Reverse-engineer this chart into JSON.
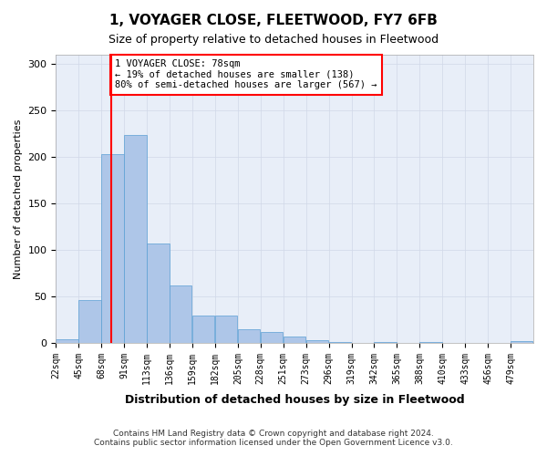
{
  "title": "1, VOYAGER CLOSE, FLEETWOOD, FY7 6FB",
  "subtitle": "Size of property relative to detached houses in Fleetwood",
  "xlabel": "Distribution of detached houses by size in Fleetwood",
  "ylabel": "Number of detached properties",
  "footer_line1": "Contains HM Land Registry data © Crown copyright and database right 2024.",
  "footer_line2": "Contains public sector information licensed under the Open Government Licence v3.0.",
  "bin_labels": [
    "22sqm",
    "45sqm",
    "68sqm",
    "91sqm",
    "113sqm",
    "136sqm",
    "159sqm",
    "182sqm",
    "205sqm",
    "228sqm",
    "251sqm",
    "273sqm",
    "296sqm",
    "319sqm",
    "342sqm",
    "365sqm",
    "388sqm",
    "410sqm",
    "433sqm",
    "456sqm",
    "479sqm"
  ],
  "bar_values": [
    4,
    46,
    203,
    224,
    107,
    62,
    29,
    29,
    15,
    12,
    7,
    3,
    1,
    0,
    1,
    0,
    1,
    0,
    0,
    0,
    2
  ],
  "bar_color": "#aec6e8",
  "bar_edge_color": "#5a9fd4",
  "vline_x": 78,
  "vline_color": "red",
  "annotation_text": "1 VOYAGER CLOSE: 78sqm\n← 19% of detached houses are smaller (138)\n80% of semi-detached houses are larger (567) →",
  "annotation_box_color": "white",
  "annotation_box_edge_color": "red",
  "ylim": [
    0,
    310
  ],
  "yticks": [
    0,
    50,
    100,
    150,
    200,
    250,
    300
  ],
  "grid_color": "#d0d8e8",
  "background_color": "#e8eef8"
}
